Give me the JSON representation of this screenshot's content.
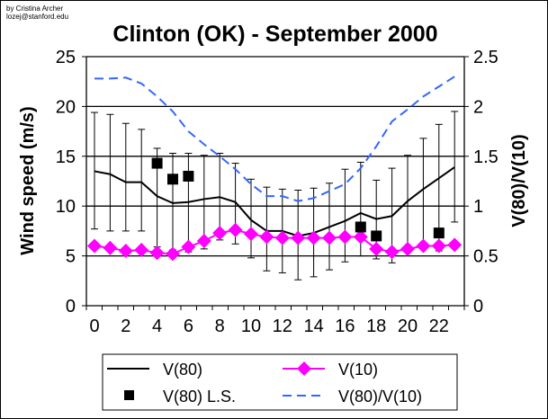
{
  "credit": [
    "by Cristina Archer",
    "lozej@stanford.edu"
  ],
  "chart_data": {
    "type": "line",
    "title": "Clinton (OK) - September 2000",
    "ylabel": "Wind speed (m/s)",
    "y2label": "V(80)/V(10)",
    "xlabel": "",
    "ylim": [
      0,
      25
    ],
    "y2lim": [
      0,
      2.5
    ],
    "yticks": [
      "0",
      "5",
      "10",
      "15",
      "20",
      "25"
    ],
    "y2ticks": [
      "0",
      "0.5",
      "1",
      "1.5",
      "2",
      "2.5"
    ],
    "xticks": [
      "0",
      "2",
      "4",
      "6",
      "8",
      "10",
      "12",
      "14",
      "16",
      "18",
      "20",
      "22"
    ],
    "x": [
      0,
      1,
      2,
      3,
      4,
      5,
      6,
      7,
      8,
      9,
      10,
      11,
      12,
      13,
      14,
      15,
      16,
      17,
      18,
      19,
      20,
      21,
      22,
      23
    ],
    "grid": "horizontal",
    "legend_position": "bottom",
    "series": [
      {
        "name": "V(80)",
        "color": "#000000",
        "axis": "left",
        "values": [
          13.5,
          13.2,
          12.4,
          12.4,
          11,
          10.3,
          10.4,
          10.7,
          10.9,
          10.4,
          8.6,
          7.5,
          7.5,
          7,
          7.3,
          7.9,
          8.5,
          9.3,
          8.7,
          9,
          10.5,
          11.7,
          12.8,
          13.9
        ],
        "error_upper": [
          19.4,
          19.2,
          18.3,
          17.7,
          15.8,
          15.3,
          15.3,
          15.1,
          15.3,
          14.3,
          12.7,
          11.9,
          11.7,
          11.6,
          11.8,
          12.3,
          13.7,
          14.4,
          12.6,
          13.8,
          15.1,
          16.8,
          18.2,
          19.5
        ],
        "error_lower": [
          7.7,
          7.5,
          7.5,
          7.5,
          5.9,
          5.6,
          5.4,
          5.7,
          6.6,
          6.2,
          4.8,
          3.5,
          3.3,
          2.6,
          2.9,
          3.6,
          4.4,
          5,
          4.7,
          4.3,
          5.5,
          5.8,
          5.5,
          8.4
        ]
      },
      {
        "name": "V(10)",
        "color": "#FF00FF",
        "axis": "left",
        "values": [
          6,
          5.8,
          5.5,
          5.6,
          5.3,
          5.2,
          5.9,
          6.5,
          7.3,
          7.6,
          7.2,
          6.9,
          6.8,
          6.8,
          6.8,
          6.8,
          6.9,
          6.9,
          5.7,
          5.4,
          5.7,
          6,
          6,
          6.1
        ]
      },
      {
        "name": "V(80) L.S.",
        "color": "#000000",
        "axis": "left",
        "points": [
          [
            4,
            14.3
          ],
          [
            5,
            12.7
          ],
          [
            6,
            13
          ],
          [
            17,
            7.9
          ],
          [
            18,
            7
          ],
          [
            22,
            7.3
          ]
        ]
      },
      {
        "name": "V(80)/V(10)",
        "color": "#3366FF",
        "axis": "right",
        "values": [
          2.28,
          2.28,
          2.29,
          2.23,
          2.1,
          1.95,
          1.75,
          1.62,
          1.5,
          1.37,
          1.22,
          1.1,
          1.1,
          1.05,
          1.08,
          1.15,
          1.22,
          1.38,
          1.6,
          1.85,
          1.97,
          2.1,
          2.2,
          2.3
        ]
      }
    ]
  }
}
